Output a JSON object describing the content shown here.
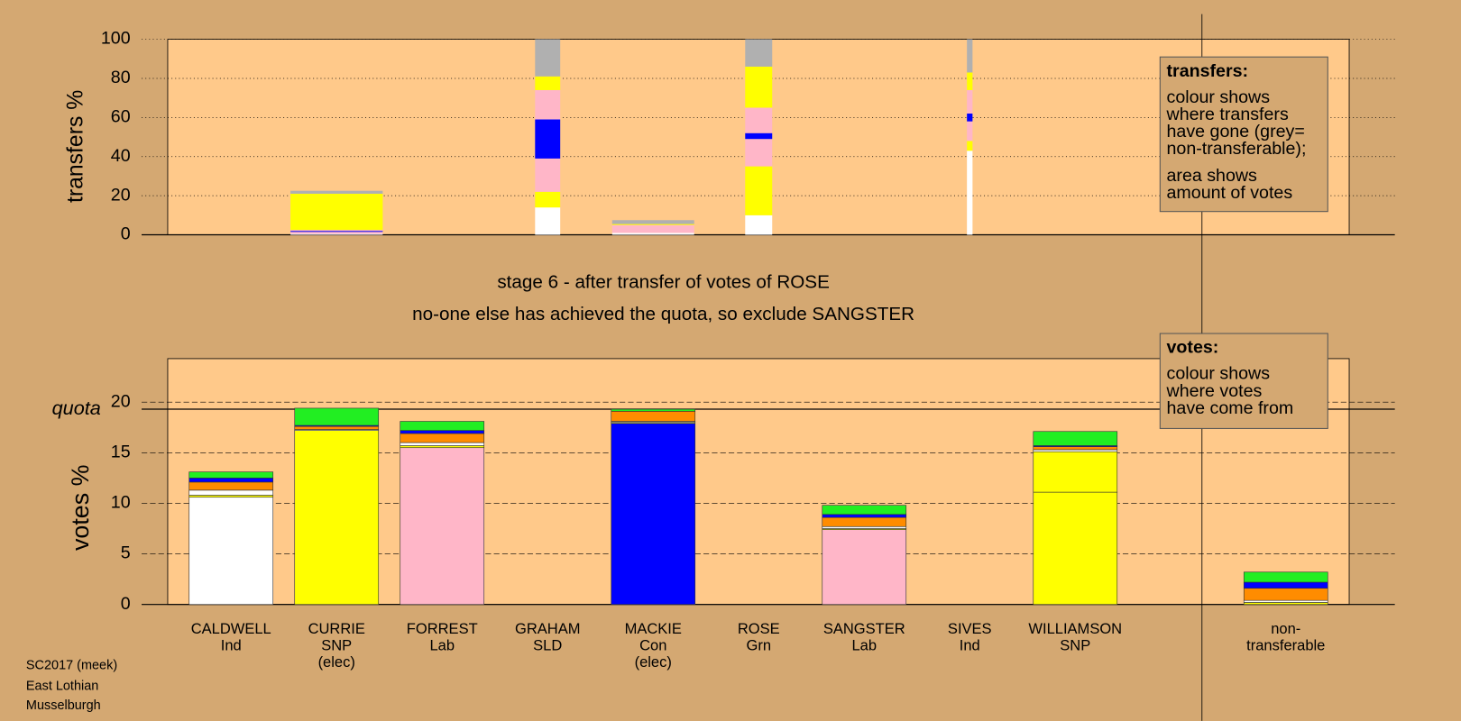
{
  "chart_data": [
    {
      "type": "bar",
      "stacked": true,
      "ylabel": "transfers %",
      "ylim": [
        0,
        100
      ],
      "yticks": [
        0,
        20,
        40,
        60,
        80,
        100
      ],
      "grid": true,
      "widths": [
        null,
        99,
        null,
        27,
        88,
        29,
        null,
        6,
        null,
        null
      ],
      "series": [
        {
          "color": "#ffffff",
          "values": [
            null,
            0.5,
            null,
            14,
            1,
            10,
            null,
            43,
            null,
            null
          ]
        },
        {
          "color": "#ffff00",
          "values": [
            null,
            null,
            null,
            8,
            null,
            25,
            null,
            5,
            null,
            null
          ]
        },
        {
          "color": "#ffb6c8",
          "values": [
            null,
            1,
            null,
            17,
            2,
            14,
            null,
            10,
            null,
            null
          ]
        },
        {
          "color": "#0000ff",
          "values": [
            null,
            0.5,
            null,
            20,
            null,
            3,
            null,
            4,
            null,
            null
          ]
        },
        {
          "color": "#ffb6c8",
          "values": [
            null,
            0.5,
            null,
            15,
            2,
            13,
            null,
            12,
            null,
            null
          ]
        },
        {
          "color": "#ffff00",
          "values": [
            null,
            18.5,
            null,
            7,
            0.5,
            21,
            null,
            9,
            null,
            null
          ]
        },
        {
          "color": "#b0b0b0",
          "values": [
            null,
            1.5,
            null,
            19,
            2,
            14,
            null,
            17,
            null,
            null
          ]
        }
      ],
      "note": {
        "heading": "transfers:",
        "lines": [
          "colour shows",
          "where transfers",
          "have gone (grey=",
          "non-transferable);",
          "area shows",
          "amount of votes"
        ]
      }
    },
    {
      "type": "bar",
      "stacked": true,
      "ylabel": "votes %",
      "ylim": [
        0,
        24.3
      ],
      "yticks": [
        0,
        5,
        10,
        15,
        20
      ],
      "grid": true,
      "subtitle": [
        "stage 6 - after transfer of votes of ROSE",
        "no-one else has achieved the quota, so exclude SANGSTER"
      ],
      "quota": {
        "label": "quota",
        "value": 19.3
      },
      "categories": [
        [
          "CALDWELL",
          "Ind"
        ],
        [
          "CURRIE",
          "SNP",
          "(elec)"
        ],
        [
          "FORREST",
          "Lab"
        ],
        [
          "GRAHAM",
          "SLD"
        ],
        [
          "MACKIE",
          "Con",
          "(elec)"
        ],
        [
          "ROSE",
          "Grn"
        ],
        [
          "SANGSTER",
          "Lab"
        ],
        [
          "SIVES",
          "Ind"
        ],
        [
          "WILLIAMSON",
          "SNP"
        ],
        [
          "non-",
          "transferable"
        ]
      ],
      "series": [
        {
          "colors": [
            "#ffffff",
            "#ffff00",
            "#ffb6c8",
            "#ff8c00",
            "#0000ff",
            "#22ee22",
            "#ffb6c8",
            "#ffffff",
            "#ffff00",
            "#b0b0b0"
          ],
          "values": [
            10.6,
            17.2,
            15.5,
            null,
            17.9,
            null,
            7.4,
            null,
            11.1,
            null
          ]
        },
        {
          "color": "#ffff00",
          "values": [
            0.2,
            null,
            0.2,
            null,
            0.1,
            null,
            0.1,
            null,
            4.0,
            0.2
          ]
        },
        {
          "color": "#ffffff",
          "values": [
            0.5,
            0.1,
            0.3,
            null,
            0.1,
            null,
            0.2,
            null,
            0.2,
            0.2
          ]
        },
        {
          "color": "#ff8c00",
          "values": [
            0.8,
            0.3,
            0.9,
            null,
            1.0,
            null,
            0.9,
            null,
            0.3,
            1.2
          ]
        },
        {
          "color": "#0000ff",
          "values": [
            0.4,
            0.1,
            0.3,
            null,
            null,
            null,
            0.3,
            null,
            0.1,
            0.6
          ]
        },
        {
          "color": "#22ee22",
          "values": [
            0.6,
            1.7,
            0.9,
            null,
            0.2,
            null,
            0.9,
            null,
            1.4,
            1.0
          ]
        }
      ],
      "note": {
        "heading": "votes:",
        "lines": [
          "colour shows",
          "where votes",
          "have come from"
        ]
      }
    }
  ],
  "footer": [
    "SC2017 (meek)",
    "East Lothian",
    "Musselburgh"
  ]
}
